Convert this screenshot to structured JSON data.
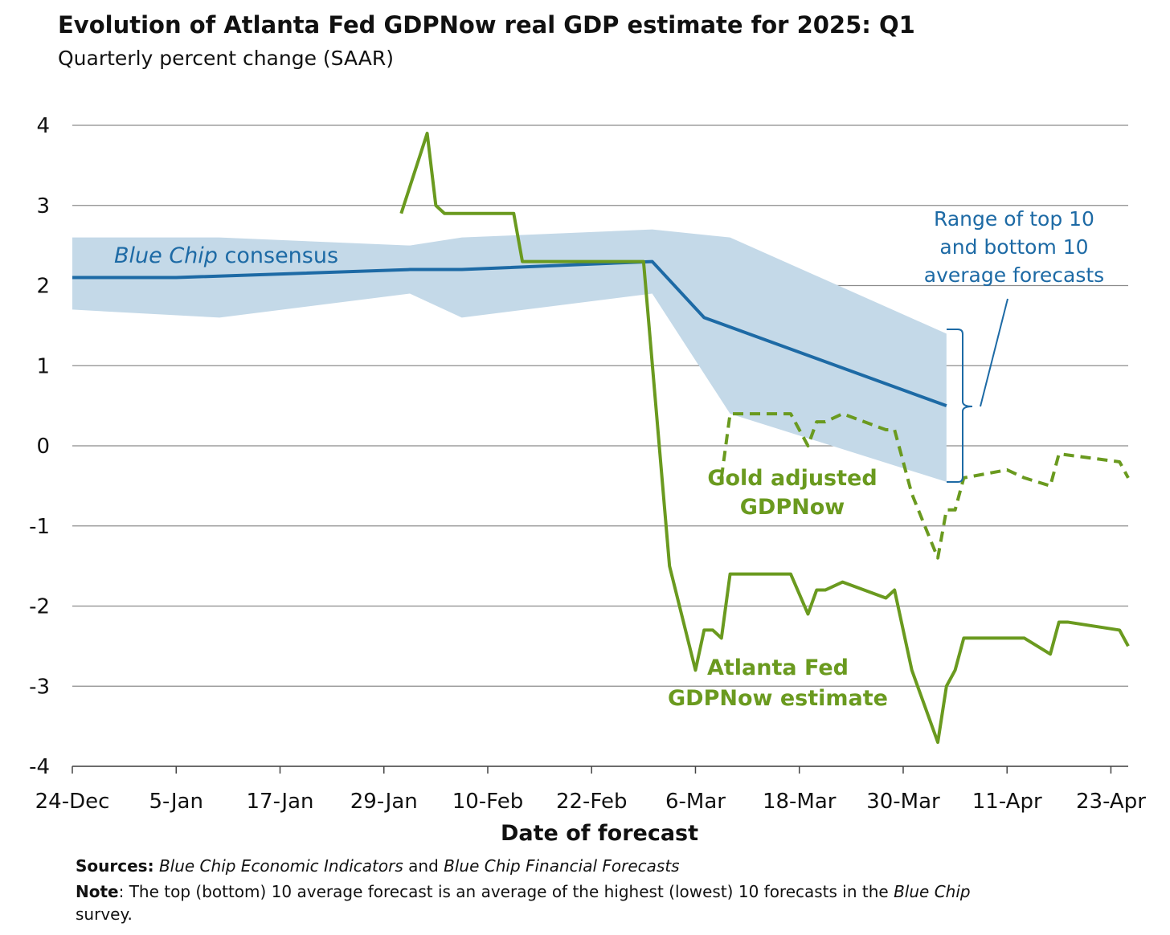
{
  "chart_data": {
    "type": "line",
    "title": "Evolution of Atlanta Fed GDPNow real GDP estimate for 2025: Q1",
    "subtitle": "Quarterly percent change (SAAR)",
    "xlabel": "Date of forecast",
    "ylabel": "",
    "ylim": [
      -4,
      4
    ],
    "yticks": [
      "4",
      "3",
      "2",
      "1",
      "0",
      "-1",
      "-2",
      "-3",
      "-4"
    ],
    "yticks_values": [
      4,
      3,
      2,
      1,
      0,
      -1,
      -2,
      -3,
      -4
    ],
    "xlim": [
      "2024-12-24",
      "2025-04-25"
    ],
    "xticks": [
      {
        "date": "2024-12-24",
        "label": "24-Dec"
      },
      {
        "date": "2025-01-05",
        "label": "5-Jan"
      },
      {
        "date": "2025-01-17",
        "label": "17-Jan"
      },
      {
        "date": "2025-01-29",
        "label": "29-Jan"
      },
      {
        "date": "2025-02-10",
        "label": "10-Feb"
      },
      {
        "date": "2025-02-22",
        "label": "22-Feb"
      },
      {
        "date": "2025-03-06",
        "label": "6-Mar"
      },
      {
        "date": "2025-03-18",
        "label": "18-Mar"
      },
      {
        "date": "2025-03-30",
        "label": "30-Mar"
      },
      {
        "date": "2025-04-11",
        "label": "11-Apr"
      },
      {
        "date": "2025-04-23",
        "label": "23-Apr"
      }
    ],
    "grid": true,
    "series": [
      {
        "name": "Range of top 10 and bottom 10 average forecasts",
        "kind": "band",
        "color": "#c4d9e8",
        "points": [
          {
            "x": "2024-12-24",
            "low": 1.7,
            "high": 2.6
          },
          {
            "x": "2025-01-10",
            "low": 1.6,
            "high": 2.6
          },
          {
            "x": "2025-02-01",
            "low": 1.9,
            "high": 2.5
          },
          {
            "x": "2025-02-07",
            "low": 1.6,
            "high": 2.6
          },
          {
            "x": "2025-03-01",
            "low": 1.9,
            "high": 2.7
          },
          {
            "x": "2025-03-10",
            "low": 0.4,
            "high": 2.6
          },
          {
            "x": "2025-04-04",
            "low": -0.45,
            "high": 1.4
          }
        ]
      },
      {
        "name": "Blue Chip consensus",
        "kind": "line",
        "color": "#1d6aa5",
        "points": [
          {
            "x": "2024-12-24",
            "y": 2.1
          },
          {
            "x": "2025-01-05",
            "y": 2.1
          },
          {
            "x": "2025-02-01",
            "y": 2.2
          },
          {
            "x": "2025-02-07",
            "y": 2.2
          },
          {
            "x": "2025-03-01",
            "y": 2.3
          },
          {
            "x": "2025-03-07",
            "y": 1.6
          },
          {
            "x": "2025-04-04",
            "y": 0.5
          }
        ]
      },
      {
        "name": "Atlanta Fed GDPNow estimate",
        "kind": "line",
        "color": "#6a9a1f",
        "points": [
          {
            "x": "2025-01-31",
            "y": 2.9
          },
          {
            "x": "2025-02-03",
            "y": 3.9
          },
          {
            "x": "2025-02-04",
            "y": 3.0
          },
          {
            "x": "2025-02-05",
            "y": 2.9
          },
          {
            "x": "2025-02-13",
            "y": 2.9
          },
          {
            "x": "2025-02-14",
            "y": 2.3
          },
          {
            "x": "2025-02-28",
            "y": 2.3
          },
          {
            "x": "2025-03-03",
            "y": -1.5
          },
          {
            "x": "2025-03-06",
            "y": -2.8
          },
          {
            "x": "2025-03-07",
            "y": -2.3
          },
          {
            "x": "2025-03-08",
            "y": -2.3
          },
          {
            "x": "2025-03-09",
            "y": -2.4
          },
          {
            "x": "2025-03-10",
            "y": -1.6
          },
          {
            "x": "2025-03-17",
            "y": -1.6
          },
          {
            "x": "2025-03-19",
            "y": -2.1
          },
          {
            "x": "2025-03-20",
            "y": -1.8
          },
          {
            "x": "2025-03-21",
            "y": -1.8
          },
          {
            "x": "2025-03-23",
            "y": -1.7
          },
          {
            "x": "2025-03-28",
            "y": -1.9
          },
          {
            "x": "2025-03-29",
            "y": -1.8
          },
          {
            "x": "2025-03-31",
            "y": -2.8
          },
          {
            "x": "2025-04-03",
            "y": -3.7
          },
          {
            "x": "2025-04-04",
            "y": -3.0
          },
          {
            "x": "2025-04-05",
            "y": -2.8
          },
          {
            "x": "2025-04-06",
            "y": -2.4
          },
          {
            "x": "2025-04-13",
            "y": -2.4
          },
          {
            "x": "2025-04-16",
            "y": -2.6
          },
          {
            "x": "2025-04-17",
            "y": -2.2
          },
          {
            "x": "2025-04-18",
            "y": -2.2
          },
          {
            "x": "2025-04-24",
            "y": -2.3
          },
          {
            "x": "2025-04-25",
            "y": -2.5
          }
        ]
      },
      {
        "name": "Gold adjusted GDPNow",
        "kind": "dashed-line",
        "color": "#6a9a1f",
        "points": [
          {
            "x": "2025-03-09",
            "y": -0.4
          },
          {
            "x": "2025-03-10",
            "y": 0.4
          },
          {
            "x": "2025-03-17",
            "y": 0.4
          },
          {
            "x": "2025-03-19",
            "y": 0.0
          },
          {
            "x": "2025-03-20",
            "y": 0.3
          },
          {
            "x": "2025-03-21",
            "y": 0.3
          },
          {
            "x": "2025-03-23",
            "y": 0.4
          },
          {
            "x": "2025-03-28",
            "y": 0.2
          },
          {
            "x": "2025-03-29",
            "y": 0.2
          },
          {
            "x": "2025-03-31",
            "y": -0.6
          },
          {
            "x": "2025-04-03",
            "y": -1.4
          },
          {
            "x": "2025-04-04",
            "y": -0.8
          },
          {
            "x": "2025-04-05",
            "y": -0.8
          },
          {
            "x": "2025-04-06",
            "y": -0.4
          },
          {
            "x": "2025-04-11",
            "y": -0.3
          },
          {
            "x": "2025-04-13",
            "y": -0.4
          },
          {
            "x": "2025-04-16",
            "y": -0.5
          },
          {
            "x": "2025-04-17",
            "y": -0.1
          },
          {
            "x": "2025-04-24",
            "y": -0.2
          },
          {
            "x": "2025-04-25",
            "y": -0.4
          }
        ]
      }
    ],
    "annotations": {
      "blue_chip_prefix": "Blue Chip",
      "blue_chip_suffix": " consensus",
      "range_lines": [
        "Range of top 10",
        "and bottom 10",
        "average forecasts"
      ],
      "gold_lines": [
        "Gold adjusted",
        "GDPNow"
      ],
      "atlanta_lines": [
        "Atlanta Fed",
        "GDPNow estimate"
      ]
    }
  },
  "footer": {
    "sources_label": "Sources:",
    "sources_italic_1": "Blue Chip Economic Indicators",
    "sources_and": " and ",
    "sources_italic_2": "Blue Chip Financial Forecasts",
    "note_label": "Note",
    "note_text_1": ": The top (bottom) 10 average forecast is an average of the highest (lowest) 10 forecasts in the ",
    "note_italic": "Blue Chip",
    "note_text_2": "survey."
  }
}
